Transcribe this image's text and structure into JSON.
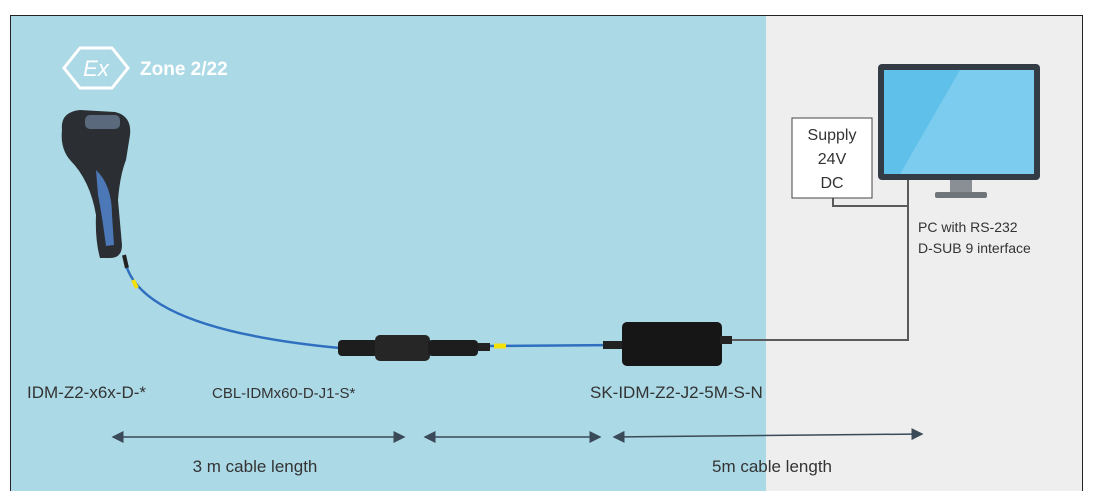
{
  "logo": "Ex",
  "zone": "Zone 2/22",
  "supply": [
    "Supply",
    "24V",
    "DC"
  ],
  "pc_label": [
    "PC with RS-232",
    "D-SUB 9 interface"
  ],
  "components": [
    "IDM-Z2-x6x-D-*",
    "CBL-IDMx60-D-J1-S*",
    "SK-IDM-Z2-J2-5M-S-N"
  ],
  "cable_lengths": [
    "3 m cable length",
    "5m cable length"
  ]
}
